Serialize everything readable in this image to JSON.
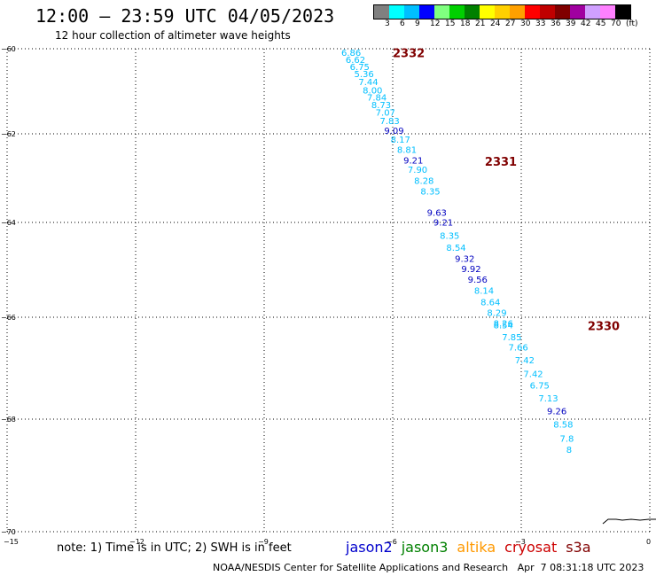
{
  "header": {
    "title": "12:00 – 23:59 UTC 04/05/2023",
    "subtitle": "12 hour collection of altimeter wave heights"
  },
  "colorbar": {
    "colors": [
      "#808080",
      "#00ffff",
      "#00bfff",
      "#0000ff",
      "#80ff80",
      "#00d000",
      "#008000",
      "#ffff00",
      "#ffd000",
      "#ffa000",
      "#ff0000",
      "#c00000",
      "#800000",
      "#a000a0",
      "#d0a0ff",
      "#ff80ff",
      "#000000"
    ],
    "labels": [
      "3",
      "6",
      "9",
      "12",
      "15",
      "18",
      "21",
      "24",
      "27",
      "30",
      "33",
      "36",
      "39",
      "42",
      "45",
      "70",
      "(ft)"
    ]
  },
  "axes": {
    "x_ticks": [
      "−15",
      "−12",
      "−9",
      "−6",
      "−3",
      "0"
    ],
    "y_ticks": [
      "−60",
      "−62",
      "−64",
      "−66",
      "−68",
      "−70"
    ]
  },
  "cycles": [
    "2332",
    "2331",
    "2330"
  ],
  "observations": [
    {
      "lon": -7.2,
      "lat": -60.17,
      "v": "6.86",
      "c": "#00bfff"
    },
    {
      "lon": -7.1,
      "lat": -60.33,
      "v": "6.62",
      "c": "#00bfff"
    },
    {
      "lon": -7.0,
      "lat": -60.5,
      "v": "6.75",
      "c": "#00bfff"
    },
    {
      "lon": -6.9,
      "lat": -60.67,
      "v": "5.36",
      "c": "#00bfff"
    },
    {
      "lon": -6.8,
      "lat": -60.85,
      "v": "7.44",
      "c": "#00bfff"
    },
    {
      "lon": -6.7,
      "lat": -61.05,
      "v": "8.00",
      "c": "#00bfff"
    },
    {
      "lon": -6.6,
      "lat": -61.22,
      "v": "7.84",
      "c": "#00bfff"
    },
    {
      "lon": -6.5,
      "lat": -61.4,
      "v": "8.73",
      "c": "#00bfff"
    },
    {
      "lon": -6.4,
      "lat": -61.57,
      "v": "7.07",
      "c": "#00bfff"
    },
    {
      "lon": -6.3,
      "lat": -61.77,
      "v": "7.83",
      "c": "#00bfff"
    },
    {
      "lon": -6.2,
      "lat": -62.0,
      "v": "9.09",
      "c": "#0000c0"
    },
    {
      "lon": -6.05,
      "lat": -62.2,
      "v": "8.17",
      "c": "#00bfff"
    },
    {
      "lon": -5.9,
      "lat": -62.43,
      "v": "8.81",
      "c": "#00bfff"
    },
    {
      "lon": -5.75,
      "lat": -62.67,
      "v": "9.21",
      "c": "#0000c0"
    },
    {
      "lon": -5.65,
      "lat": -62.88,
      "v": "7.90",
      "c": "#00bfff"
    },
    {
      "lon": -5.5,
      "lat": -63.13,
      "v": "8.28",
      "c": "#00bfff"
    },
    {
      "lon": -5.35,
      "lat": -63.37,
      "v": "8.35",
      "c": "#00bfff"
    },
    {
      "lon": -5.2,
      "lat": -63.85,
      "v": "9.63",
      "c": "#0000c0"
    },
    {
      "lon": -5.05,
      "lat": -64.07,
      "v": "9.21",
      "c": "#0000c0"
    },
    {
      "lon": -4.9,
      "lat": -64.35,
      "v": "8.35",
      "c": "#00bfff"
    },
    {
      "lon": -4.75,
      "lat": -64.6,
      "v": "8.54",
      "c": "#00bfff"
    },
    {
      "lon": -4.55,
      "lat": -64.83,
      "v": "9.32",
      "c": "#0000c0"
    },
    {
      "lon": -4.4,
      "lat": -65.05,
      "v": "9.92",
      "c": "#0000c0"
    },
    {
      "lon": -4.25,
      "lat": -65.27,
      "v": "9.56",
      "c": "#0000c0"
    },
    {
      "lon": -4.1,
      "lat": -65.5,
      "v": "8.14",
      "c": "#00bfff"
    },
    {
      "lon": -3.95,
      "lat": -65.75,
      "v": "8.64",
      "c": "#00bfff"
    },
    {
      "lon": -3.8,
      "lat": -65.97,
      "v": "8.29",
      "c": "#00bfff"
    },
    {
      "lon": -3.65,
      "lat": -66.18,
      "v": "8.26",
      "c": "#00bfff"
    },
    {
      "lon": -3.65,
      "lat": -66.22,
      "v": "8.54",
      "c": "#00bfff"
    },
    {
      "lon": -3.45,
      "lat": -66.45,
      "v": "7.85",
      "c": "#00bfff"
    },
    {
      "lon": -3.3,
      "lat": -66.65,
      "v": "7.66",
      "c": "#00bfff"
    },
    {
      "lon": -3.15,
      "lat": -66.9,
      "v": "7.42",
      "c": "#00bfff"
    },
    {
      "lon": -2.95,
      "lat": -67.17,
      "v": "7.42",
      "c": "#00bfff"
    },
    {
      "lon": -2.8,
      "lat": -67.4,
      "v": "6.75",
      "c": "#00bfff"
    },
    {
      "lon": -2.6,
      "lat": -67.65,
      "v": "7.13",
      "c": "#00bfff"
    },
    {
      "lon": -2.4,
      "lat": -67.9,
      "v": "9.26",
      "c": "#0000c0"
    },
    {
      "lon": -2.25,
      "lat": -68.15,
      "v": "8.58",
      "c": "#00bfff"
    },
    {
      "lon": -2.1,
      "lat": -68.4,
      "v": "7.8",
      "c": "#00bfff"
    },
    {
      "lon": -1.95,
      "lat": -68.6,
      "v": "8",
      "c": "#00bfff"
    }
  ],
  "note": "note: 1) Time is in UTC; 2) SWH is in feet",
  "legend": [
    {
      "name": "jason2",
      "color": "#0000cc"
    },
    {
      "name": "jason3",
      "color": "#008000"
    },
    {
      "name": "altika",
      "color": "#ff9900"
    },
    {
      "name": "cryosat",
      "color": "#cc0000"
    },
    {
      "name": "s3a",
      "color": "#800000"
    }
  ],
  "footer": "NOAA/NESDIS Center for Satellite Applications and Research   Apr  7 08:31:18 UTC 2023"
}
